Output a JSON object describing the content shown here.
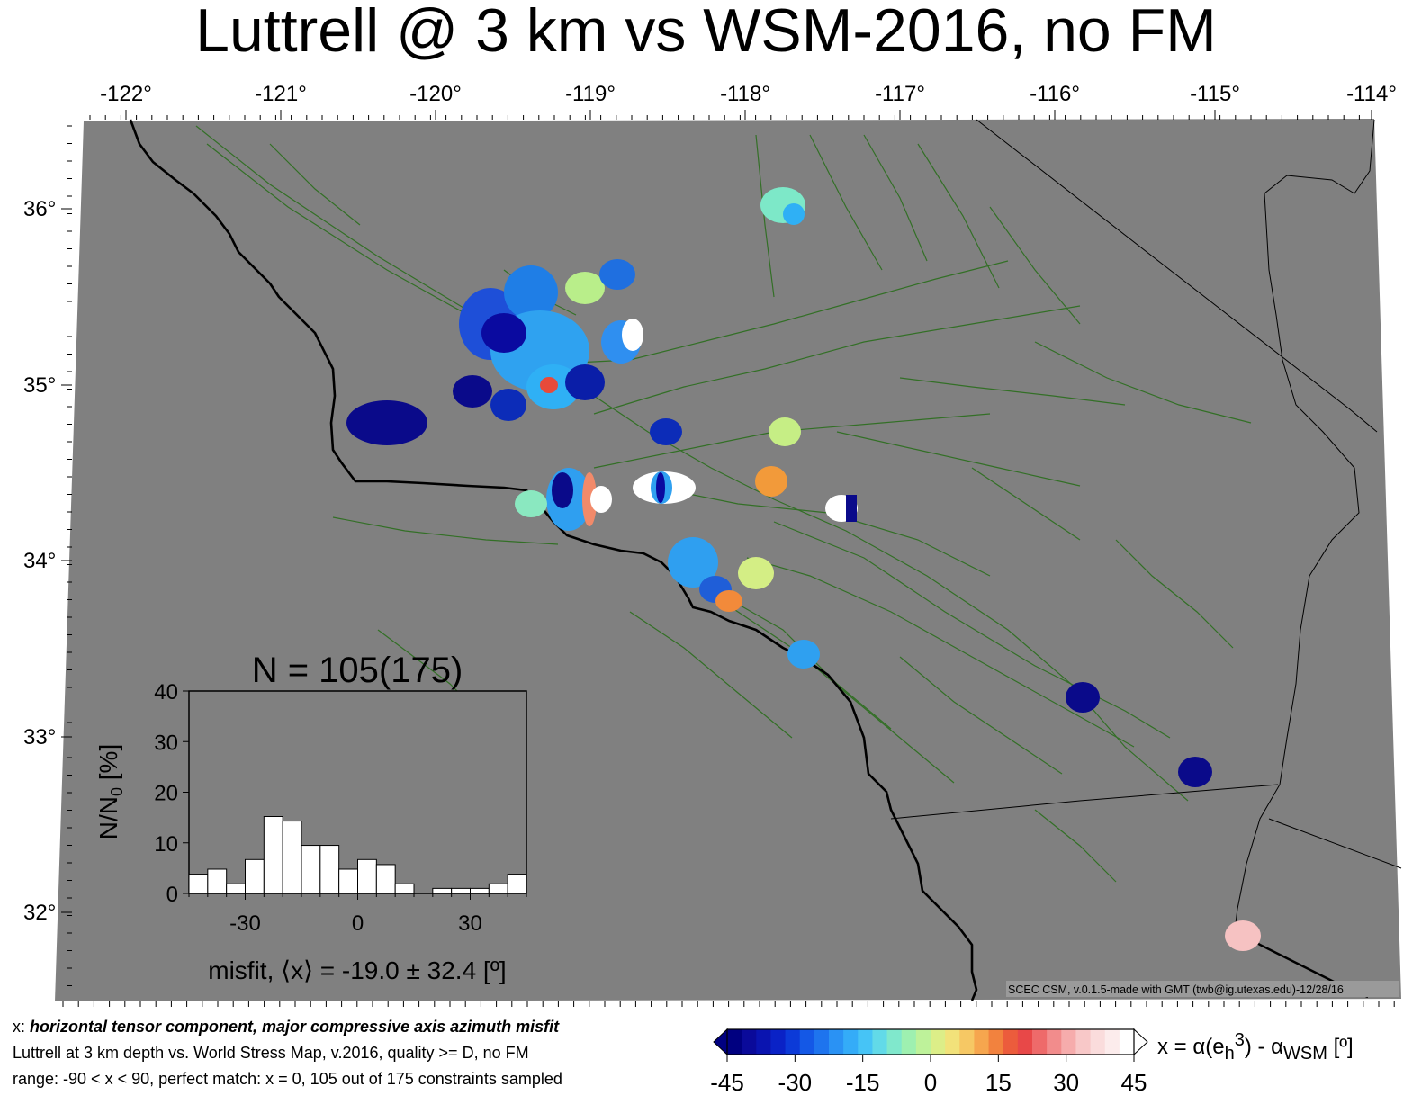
{
  "title": "Luttrell @ 3 km vs WSM-2016, no FM",
  "map": {
    "lon_ticks": [
      "-122°",
      "-121°",
      "-120°",
      "-119°",
      "-118°",
      "-117°",
      "-116°",
      "-115°",
      "-114°"
    ],
    "lat_ticks": [
      "36°",
      "35°",
      "34°",
      "33°",
      "32°"
    ],
    "credit": "SCEC CSM, v.0.1.5-made with GMT (twb@ig.utexas.edu)-12/28/16",
    "colors": {
      "land": "#808080",
      "faults": "#2f6f22",
      "coast": "#000000",
      "border": "#000000"
    }
  },
  "histogram": {
    "title": "N = 105(175)",
    "ylabel": "N/N0 [%]",
    "xlabel": "misfit, ⟨x⟩ = -19.0 ± 32.4 [º]",
    "y_ticks": [
      "0",
      "10",
      "20",
      "30",
      "40"
    ],
    "x_ticks": [
      "-30",
      "0",
      "30"
    ]
  },
  "chart_data": {
    "type": "bar",
    "title": "N = 105(175)",
    "xlabel": "misfit, ⟨x⟩ = -19.0 ± 32.4 [º]",
    "ylabel": "N/N0 [%]",
    "xlim": [
      -45,
      45
    ],
    "ylim": [
      0,
      40
    ],
    "bin_width": 5,
    "bin_edges": [
      -45,
      -40,
      -35,
      -30,
      -25,
      -20,
      -15,
      -10,
      -5,
      0,
      5,
      10,
      15,
      20,
      25,
      30,
      35,
      40,
      45
    ],
    "values": [
      3.8,
      4.8,
      1.9,
      6.7,
      15.2,
      14.3,
      9.5,
      9.5,
      4.8,
      6.7,
      5.7,
      1.9,
      0,
      1.0,
      1.0,
      1.0,
      1.9,
      3.8
    ]
  },
  "colorbar": {
    "ticks": [
      "-45",
      "-30",
      "-15",
      "0",
      "15",
      "30",
      "45"
    ],
    "label_x": "x = α(e",
    "label_h": "h",
    "label_3": "3",
    "label_mid": ") - α",
    "label_wsm": "WSM",
    "label_end": " [º]"
  },
  "footnotes": {
    "line1_prefix": "x: ",
    "line1_bold": "horizontal tensor component, major compressive axis azimuth misfit",
    "line2": "Luttrell at 3 km depth vs.  World Stress Map, v.2016, quality >= D, no FM",
    "line3": "range: -90 < x < 90, perfect match: x = 0, 105 out of 175 constraints sampled"
  }
}
